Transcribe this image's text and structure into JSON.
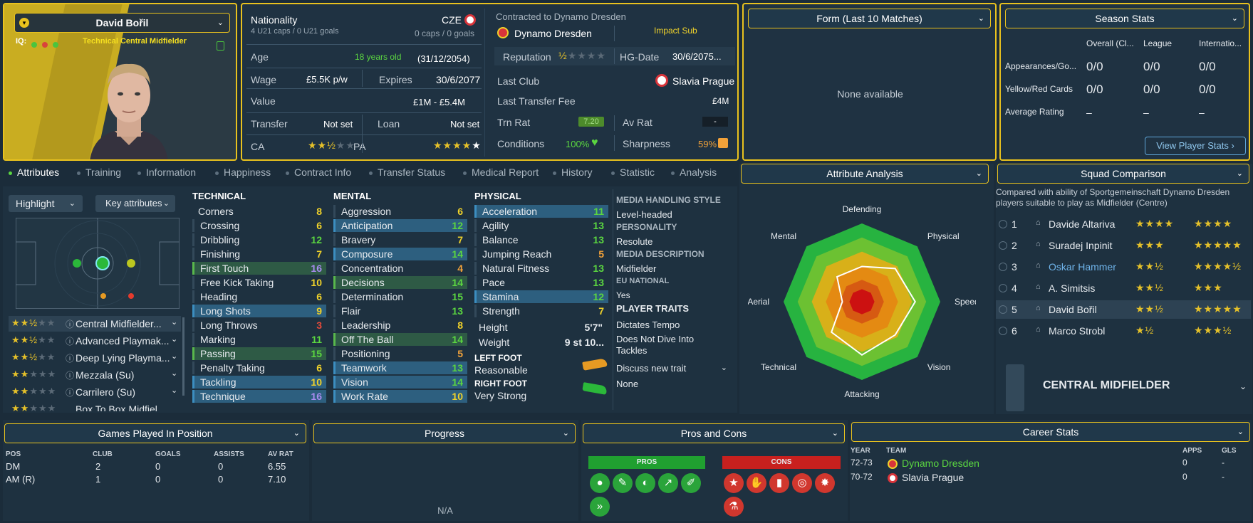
{
  "profile": {
    "name": "David Bořil",
    "iq": "IQ:",
    "role": "Technical Central Midfielder"
  },
  "info": {
    "nationality_label": "Nationality",
    "nationality": "CZE",
    "u21": "4 U21 caps / 0 U21 goals",
    "caps": "0 caps / 0 goals",
    "age_label": "Age",
    "age": "18 years old",
    "dob": "(31/12/2054)",
    "wage_label": "Wage",
    "wage": "£5.5K p/w",
    "expires_label": "Expires",
    "expires": "30/6/2077",
    "value_label": "Value",
    "value": "£1M - £5.4M",
    "transfer_label": "Transfer",
    "transfer": "Not set",
    "loan_label": "Loan",
    "loan": "Not set",
    "ca_label": "CA",
    "pa_label": "PA",
    "contract_label": "Contracted to Dynamo Dresden",
    "club": "Dynamo Dresden",
    "impact": "Impact Sub",
    "rep_label": "Reputation",
    "hg_label": "HG-Date",
    "hg": "30/6/2075...",
    "lastclub_label": "Last Club",
    "lastclub": "Slavia Prague",
    "fee_label": "Last Transfer Fee",
    "fee": "£4M",
    "trn_label": "Trn Rat",
    "trn": "7.20",
    "av_label": "Av Rat",
    "av": "-",
    "cond_label": "Conditions",
    "cond": "100%",
    "sharp_label": "Sharpness",
    "sharp": "59%"
  },
  "form": {
    "title": "Form (Last 10 Matches)",
    "empty": "None available"
  },
  "season": {
    "title": "Season Stats",
    "cols": [
      "Overall (Cl...",
      "League",
      "Internatio..."
    ],
    "rows": [
      {
        "label": "Appearances/Go...",
        "vals": [
          "0/0",
          "0/0",
          "0/0"
        ]
      },
      {
        "label": "Yellow/Red Cards",
        "vals": [
          "0/0",
          "0/0",
          "0/0"
        ]
      },
      {
        "label": "Average Rating",
        "vals": [
          "–",
          "–",
          "–"
        ]
      }
    ],
    "button": "View Player Stats"
  },
  "tabs": [
    "Attributes",
    "Training",
    "Information",
    "Happiness",
    "Contract Info",
    "Transfer Status",
    "Medical Report",
    "History",
    "Statistic",
    "Analysis"
  ],
  "controls": {
    "highlight": "Highlight",
    "key": "Key attributes"
  },
  "roles": [
    {
      "name": "Central Midfielder..."
    },
    {
      "name": "Advanced Playmak..."
    },
    {
      "name": "Deep Lying Playma..."
    },
    {
      "name": "Mezzala (Su)"
    },
    {
      "name": "Carrilero (Su)"
    },
    {
      "name": "Box To Box Midfiel..."
    }
  ],
  "technical": {
    "title": "TECHNICAL",
    "items": [
      [
        "Corners",
        "8"
      ],
      [
        "Crossing",
        "6"
      ],
      [
        "Dribbling",
        "12"
      ],
      [
        "Finishing",
        "7"
      ],
      [
        "First Touch",
        "16"
      ],
      [
        "Free Kick Taking",
        "10"
      ],
      [
        "Heading",
        "6"
      ],
      [
        "Long Shots",
        "9"
      ],
      [
        "Long Throws",
        "3"
      ],
      [
        "Marking",
        "11"
      ],
      [
        "Passing",
        "15"
      ],
      [
        "Penalty Taking",
        "6"
      ],
      [
        "Tackling",
        "10"
      ],
      [
        "Technique",
        "16"
      ]
    ]
  },
  "mental": {
    "title": "MENTAL",
    "items": [
      [
        "Aggression",
        "6"
      ],
      [
        "Anticipation",
        "12"
      ],
      [
        "Bravery",
        "7"
      ],
      [
        "Composure",
        "14"
      ],
      [
        "Concentration",
        "4"
      ],
      [
        "Decisions",
        "14"
      ],
      [
        "Determination",
        "15"
      ],
      [
        "Flair",
        "13"
      ],
      [
        "Leadership",
        "8"
      ],
      [
        "Off The Ball",
        "14"
      ],
      [
        "Positioning",
        "5"
      ],
      [
        "Teamwork",
        "13"
      ],
      [
        "Vision",
        "14"
      ],
      [
        "Work Rate",
        "10"
      ]
    ]
  },
  "physical": {
    "title": "PHYSICAL",
    "items": [
      [
        "Acceleration",
        "11"
      ],
      [
        "Agility",
        "13"
      ],
      [
        "Balance",
        "13"
      ],
      [
        "Jumping Reach",
        "5"
      ],
      [
        "Natural Fitness",
        "13"
      ],
      [
        "Pace",
        "13"
      ],
      [
        "Stamina",
        "12"
      ],
      [
        "Strength",
        "7"
      ]
    ],
    "height_label": "Height",
    "height": "5'7\"",
    "weight_label": "Weight",
    "weight": "9 st 10...",
    "lf_label": "LEFT FOOT",
    "lf": "Reasonable",
    "rf_label": "RIGHT FOOT",
    "rf": "Very Strong"
  },
  "media": {
    "mh_label": "MEDIA HANDLING STYLE",
    "mh": "Level-headed",
    "pers_label": "PERSONALITY",
    "pers": "Resolute",
    "md_label": "MEDIA DESCRIPTION",
    "md": "Midfielder",
    "eu_label": "EU NATIONAL",
    "eu": "Yes",
    "traits_label": "PLAYER TRAITS",
    "traits": [
      "Dictates Tempo",
      "Does Not Dive Into Tackles"
    ],
    "discuss": "Discuss new trait",
    "none": "None"
  },
  "analysis": {
    "title": "Attribute Analysis",
    "axes": [
      "Defending",
      "Physical",
      "Speed",
      "Vision",
      "Attacking",
      "Technical",
      "Aerial",
      "Mental"
    ],
    "values": [
      0.45,
      0.6,
      0.68,
      0.6,
      0.68,
      0.55,
      0.25,
      0.45
    ]
  },
  "squad": {
    "title": "Squad Comparison",
    "desc": "Compared with ability of Sportgemeinschaft Dynamo Dresden players suitable to play as Midfielder (Centre)",
    "players": [
      {
        "rank": "1",
        "name": "Davide Altariva",
        "ca": "★★★★",
        "pa": "★★★★"
      },
      {
        "rank": "2",
        "name": "Suradej Inpinit",
        "ca": "★★★",
        "pa": "★★★★★"
      },
      {
        "rank": "3",
        "name": "Oskar Hammer",
        "ca": "★★½",
        "pa": "★★★★½"
      },
      {
        "rank": "4",
        "name": "A. Simitsis",
        "ca": "★★½",
        "pa": "★★★"
      },
      {
        "rank": "5",
        "name": "David Bořil",
        "ca": "★★½",
        "pa": "★★★★★"
      },
      {
        "rank": "6",
        "name": "Marco Strobl",
        "ca": "★½",
        "pa": "★★★½"
      }
    ],
    "position": "CENTRAL MIDFIELDER"
  },
  "games": {
    "title": "Games Played In Position",
    "cols": [
      "POS",
      "CLUB",
      "GOALS",
      "ASSISTS",
      "AV RAT"
    ],
    "rows": [
      [
        "DM",
        "2",
        "0",
        "0",
        "6.55"
      ],
      [
        "AM (R)",
        "1",
        "0",
        "0",
        "7.10"
      ]
    ]
  },
  "progress": {
    "title": "Progress",
    "empty": "N/A"
  },
  "proscons": {
    "title": "Pros and Cons",
    "pros": "PROS",
    "cons": "CONS"
  },
  "career": {
    "title": "Career Stats",
    "cols": [
      "YEAR",
      "TEAM",
      "APPS",
      "GLS"
    ],
    "rows": [
      [
        "72-73",
        "Dynamo Dresden",
        "0",
        "-"
      ],
      [
        "70-72",
        "Slavia Prague",
        "0",
        "-"
      ]
    ]
  }
}
